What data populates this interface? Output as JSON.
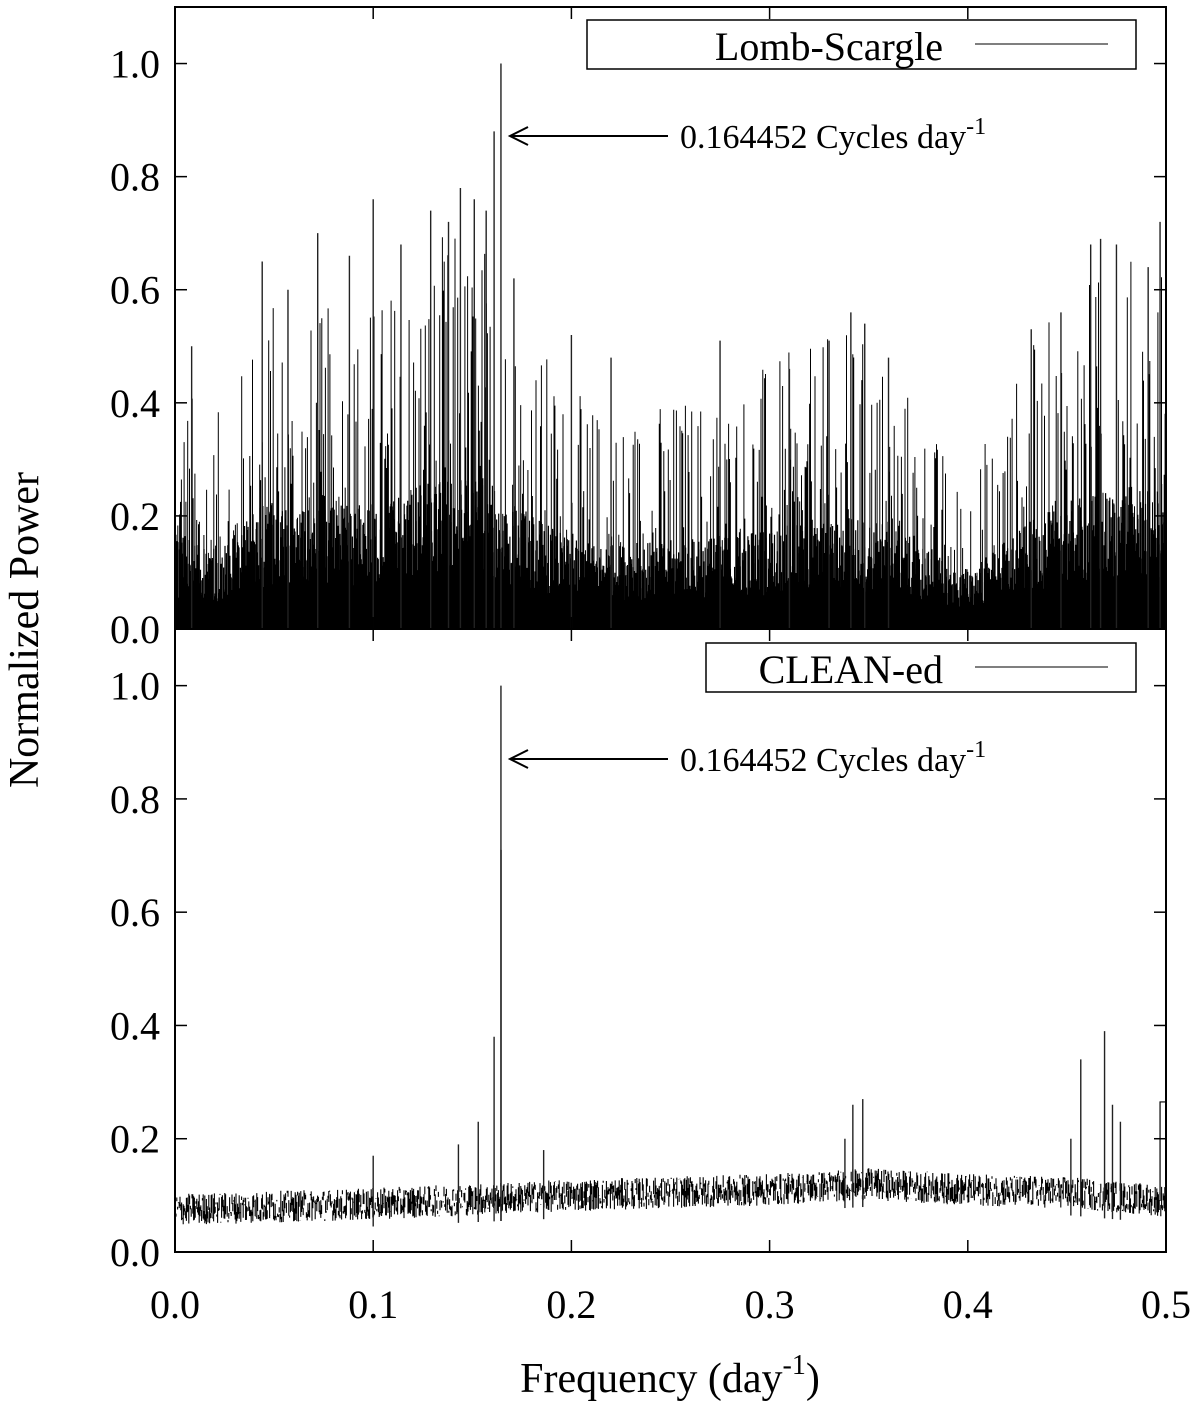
{
  "chart_data": [
    {
      "type": "line",
      "panel": "top",
      "legend": {
        "label": "Lomb-Scargle",
        "placement": "top-right"
      },
      "xlim": [
        0.0,
        0.5
      ],
      "ylim": [
        0.0,
        1.1
      ],
      "x_ticks": [
        "0.0",
        "0.1",
        "0.2",
        "0.3",
        "0.4",
        "0.5"
      ],
      "y_ticks": [
        "0.0",
        "0.2",
        "0.4",
        "0.6",
        "0.8",
        "1.0"
      ],
      "y_tick_values": [
        0.0,
        0.2,
        0.4,
        0.6,
        0.8,
        1.0
      ],
      "annotation": {
        "text": "0.164452 Cycles day",
        "superscript": "-1",
        "x": 0.164452,
        "y": 0.88
      },
      "noise_envelope": [
        [
          0.0,
          0.42
        ],
        [
          0.005,
          0.45
        ],
        [
          0.02,
          0.38
        ],
        [
          0.03,
          0.42
        ],
        [
          0.04,
          0.58
        ],
        [
          0.05,
          0.6
        ],
        [
          0.06,
          0.55
        ],
        [
          0.08,
          0.58
        ],
        [
          0.1,
          0.6
        ],
        [
          0.12,
          0.68
        ],
        [
          0.14,
          0.72
        ],
        [
          0.155,
          0.72
        ],
        [
          0.17,
          0.6
        ],
        [
          0.18,
          0.55
        ],
        [
          0.2,
          0.42
        ],
        [
          0.22,
          0.4
        ],
        [
          0.25,
          0.42
        ],
        [
          0.28,
          0.45
        ],
        [
          0.3,
          0.48
        ],
        [
          0.32,
          0.5
        ],
        [
          0.34,
          0.54
        ],
        [
          0.36,
          0.5
        ],
        [
          0.38,
          0.38
        ],
        [
          0.395,
          0.27
        ],
        [
          0.41,
          0.35
        ],
        [
          0.43,
          0.5
        ],
        [
          0.45,
          0.6
        ],
        [
          0.47,
          0.66
        ],
        [
          0.49,
          0.68
        ],
        [
          0.5,
          0.7
        ]
      ],
      "peaks": [
        {
          "x": 0.0084,
          "y": 0.5
        },
        {
          "x": 0.044,
          "y": 0.65
        },
        {
          "x": 0.057,
          "y": 0.6
        },
        {
          "x": 0.072,
          "y": 0.7
        },
        {
          "x": 0.088,
          "y": 0.66
        },
        {
          "x": 0.1,
          "y": 0.76
        },
        {
          "x": 0.114,
          "y": 0.68
        },
        {
          "x": 0.129,
          "y": 0.74
        },
        {
          "x": 0.138,
          "y": 0.72
        },
        {
          "x": 0.144,
          "y": 0.78
        },
        {
          "x": 0.151,
          "y": 0.76
        },
        {
          "x": 0.157,
          "y": 0.74
        },
        {
          "x": 0.161,
          "y": 0.88
        },
        {
          "x": 0.164452,
          "y": 1.0
        },
        {
          "x": 0.171,
          "y": 0.62
        },
        {
          "x": 0.2,
          "y": 0.52
        },
        {
          "x": 0.22,
          "y": 0.48
        },
        {
          "x": 0.275,
          "y": 0.51
        },
        {
          "x": 0.31,
          "y": 0.46
        },
        {
          "x": 0.33,
          "y": 0.51
        },
        {
          "x": 0.341,
          "y": 0.56
        },
        {
          "x": 0.348,
          "y": 0.54
        },
        {
          "x": 0.36,
          "y": 0.48
        },
        {
          "x": 0.432,
          "y": 0.53
        },
        {
          "x": 0.447,
          "y": 0.56
        },
        {
          "x": 0.462,
          "y": 0.68
        },
        {
          "x": 0.467,
          "y": 0.69
        },
        {
          "x": 0.475,
          "y": 0.68
        },
        {
          "x": 0.491,
          "y": 0.64
        },
        {
          "x": 0.497,
          "y": 0.72
        }
      ]
    },
    {
      "type": "line",
      "panel": "bottom",
      "legend": {
        "label": "CLEAN-ed",
        "placement": "top-right"
      },
      "xlim": [
        0.0,
        0.5
      ],
      "ylim": [
        0.0,
        1.1
      ],
      "x_ticks": [
        "0.0",
        "0.1",
        "0.2",
        "0.3",
        "0.4",
        "0.5"
      ],
      "y_ticks": [
        "0.0",
        "0.2",
        "0.4",
        "0.6",
        "0.8",
        "1.0"
      ],
      "y_tick_values": [
        0.0,
        0.2,
        0.4,
        0.6,
        0.8,
        1.0
      ],
      "annotation": {
        "text": "0.164452 Cycles day",
        "superscript": "-1",
        "x": 0.164452,
        "y": 0.87
      },
      "baseline": [
        [
          0.0,
          0.075
        ],
        [
          0.1,
          0.085
        ],
        [
          0.2,
          0.1
        ],
        [
          0.3,
          0.11
        ],
        [
          0.35,
          0.12
        ],
        [
          0.4,
          0.11
        ],
        [
          0.45,
          0.105
        ],
        [
          0.5,
          0.09
        ]
      ],
      "noise_amplitude": 0.028,
      "peaks": [
        {
          "x": 0.164452,
          "y": 1.0
        },
        {
          "x": 0.1645,
          "y": 0.71
        },
        {
          "x": 0.161,
          "y": 0.38
        },
        {
          "x": 0.153,
          "y": 0.23
        },
        {
          "x": 0.143,
          "y": 0.19
        },
        {
          "x": 0.1,
          "y": 0.17
        },
        {
          "x": 0.186,
          "y": 0.18
        },
        {
          "x": 0.342,
          "y": 0.26
        },
        {
          "x": 0.347,
          "y": 0.27
        },
        {
          "x": 0.338,
          "y": 0.2
        },
        {
          "x": 0.457,
          "y": 0.34
        },
        {
          "x": 0.469,
          "y": 0.39
        },
        {
          "x": 0.473,
          "y": 0.26
        },
        {
          "x": 0.477,
          "y": 0.23
        },
        {
          "x": 0.452,
          "y": 0.2
        }
      ],
      "step_end": {
        "x": 0.497,
        "y": 0.265
      }
    }
  ],
  "shared": {
    "ylabel": "Normalized Power",
    "xlabel": "Frequency (day",
    "xlabel_superscript": "-1",
    "xlabel_suffix": ")"
  }
}
